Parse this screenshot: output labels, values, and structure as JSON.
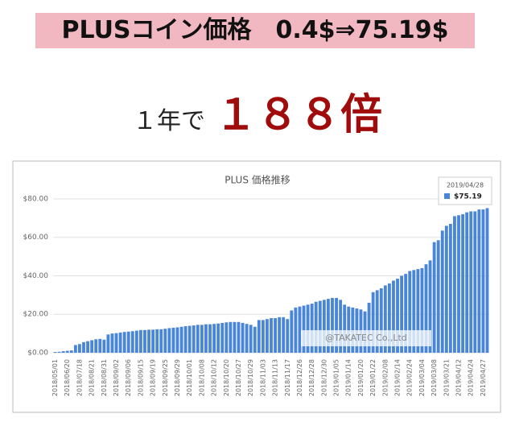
{
  "header": {
    "title": "PLUSコイン価格　0.4$⇒75.19$",
    "lead": "１年で",
    "highlight": "１８８倍"
  },
  "chart_data": {
    "type": "bar",
    "title": "PLUS 価格推移",
    "color": "#4a86d8",
    "grid": true,
    "watermark": "@TAKATEC Co.,Ltd",
    "tooltip": {
      "date": "2019/04/28",
      "value": 75.19,
      "value_label": "$75.19"
    },
    "ylim": [
      0,
      85
    ],
    "yticks": [
      {
        "value": 0,
        "label": "$0.00"
      },
      {
        "value": 20,
        "label": "$20.00"
      },
      {
        "value": 40,
        "label": "$40.00"
      },
      {
        "value": 60,
        "label": "$60.00"
      },
      {
        "value": 80,
        "label": "$80.00"
      }
    ],
    "categories": [
      "2018/05/01",
      null,
      null,
      "2018/06/20",
      null,
      null,
      "2018/07/18",
      null,
      null,
      "2018/08/21",
      null,
      null,
      "2018/08/31",
      null,
      null,
      "2018/09/02",
      null,
      null,
      "2018/09/06",
      null,
      null,
      "2018/09/15",
      null,
      null,
      "2018/09/19",
      null,
      null,
      "2018/09/25",
      null,
      null,
      "2018/09/29",
      null,
      null,
      "2018/10/01",
      null,
      null,
      "2018/10/08",
      null,
      null,
      "2018/10/12",
      null,
      null,
      "2018/10/20",
      null,
      null,
      "2018/10/27",
      null,
      null,
      "2018/10/29",
      null,
      null,
      "2018/11/03",
      null,
      null,
      "2018/11/13",
      null,
      null,
      "2018/11/17",
      null,
      null,
      "2018/12/26",
      null,
      null,
      "2018/12/28",
      null,
      null,
      "2018/12/30",
      null,
      null,
      "2019/01/05",
      null,
      null,
      "2019/01/14",
      null,
      null,
      "2019/01/20",
      null,
      null,
      "2019/01/22",
      null,
      null,
      "2019/02/08",
      null,
      null,
      "2019/02/14",
      null,
      null,
      "2019/02/24",
      null,
      null,
      "2019/03/04",
      null,
      null,
      "2019/03/08",
      null,
      null,
      "2019/03/21",
      null,
      null,
      "2019/04/12",
      null,
      null,
      "2019/04/24",
      null,
      null,
      "2019/04/27",
      null
    ],
    "values": [
      0.4,
      0.5,
      0.8,
      1.0,
      1.2,
      4.0,
      4.5,
      5.5,
      6.0,
      6.5,
      7.0,
      7.2,
      6.8,
      9.5,
      10.0,
      10.2,
      10.5,
      10.8,
      11.0,
      11.2,
      11.5,
      11.8,
      11.8,
      12.0,
      12.0,
      12.2,
      12.2,
      12.5,
      12.8,
      13.0,
      13.2,
      13.5,
      13.8,
      14.0,
      14.2,
      14.5,
      14.5,
      14.8,
      14.8,
      15.0,
      15.2,
      15.5,
      15.8,
      16.0,
      16.0,
      16.0,
      15.5,
      15.0,
      14.5,
      13.5,
      17.0,
      17.0,
      17.5,
      18.0,
      18.0,
      18.5,
      18.5,
      17.5,
      22.0,
      23.5,
      24.0,
      24.5,
      25.0,
      25.5,
      26.5,
      27.0,
      27.5,
      28.0,
      28.5,
      28.5,
      27.5,
      25.0,
      24.0,
      23.5,
      23.0,
      22.5,
      21.5,
      26.0,
      31.5,
      32.5,
      33.5,
      35.0,
      36.0,
      37.5,
      38.5,
      40.0,
      41.0,
      42.5,
      43.0,
      43.5,
      44.0,
      46.0,
      48.0,
      57.5,
      58.5,
      63.5,
      66.0,
      67.0,
      71.0,
      71.5,
      72.0,
      73.0,
      73.5,
      73.5,
      74.5,
      74.5,
      75.19
    ]
  }
}
